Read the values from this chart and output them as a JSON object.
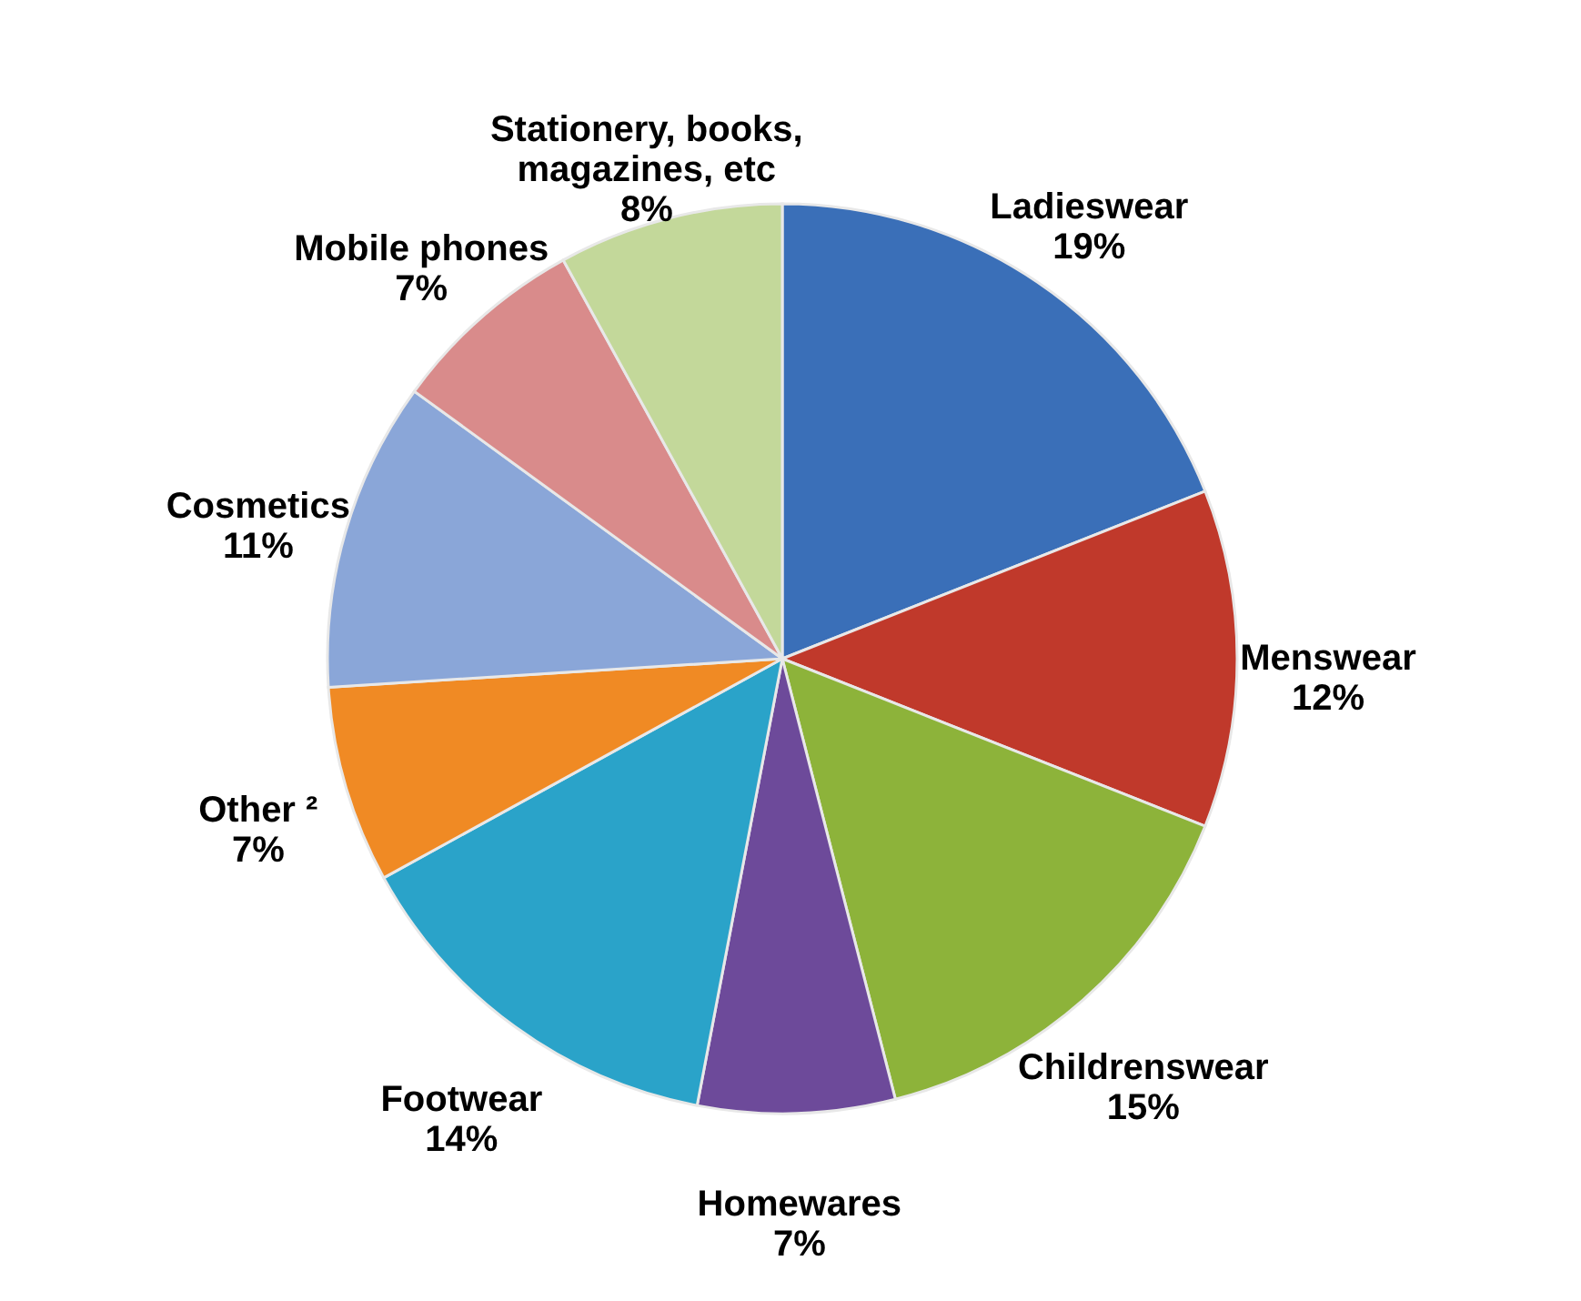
{
  "chart_data": {
    "type": "pie",
    "categories": [
      "Ladieswear",
      "Menswear",
      "Childrenswear",
      "Homewares",
      "Footwear",
      "Other ²",
      "Cosmetics",
      "Mobile phones",
      "Stationery, books,\nmagazines, etc"
    ],
    "values": [
      19,
      12,
      15,
      7,
      14,
      7,
      11,
      7,
      8
    ],
    "value_labels": [
      "19%",
      "12%",
      "15%",
      "7%",
      "14%",
      "7%",
      "11%",
      "7%",
      "8%"
    ],
    "colors": [
      "#3a6fb8",
      "#c0392b",
      "#8db33a",
      "#6d4a9a",
      "#2aa3c9",
      "#f08a24",
      "#8aa6d8",
      "#d98b8b",
      "#c3d89a"
    ]
  }
}
